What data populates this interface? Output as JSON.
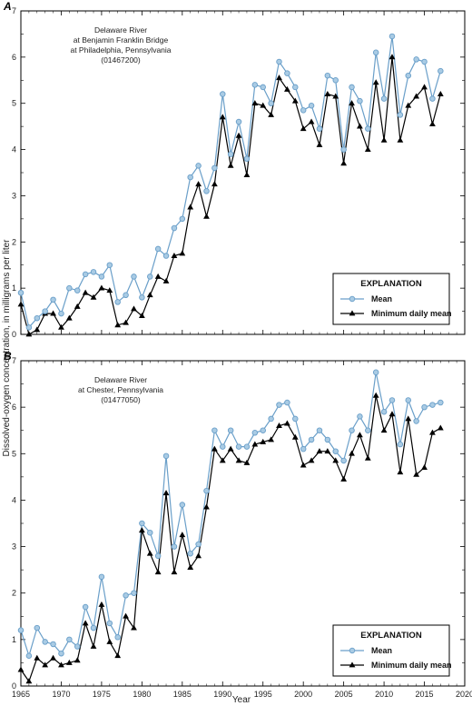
{
  "ylabel": "Dissolved-oxygen concentration, in milligrams per liter",
  "xlabel": "Year",
  "colors": {
    "mean": "#6a9fc9",
    "mean_fill": "#a9cbe4",
    "minimum": "#000000"
  },
  "legend_title": "EXPLANATION",
  "legend_mean": "Mean",
  "legend_min": "Minimum daily mean",
  "chart_data": [
    {
      "type": "line",
      "panel": "A",
      "station": [
        "Delaware River",
        "at Benjamin Franklin Bridge",
        "at Philadelphia, Pennsylvania",
        "(01467200)"
      ],
      "xlim": [
        1965,
        2020
      ],
      "ylim": [
        0,
        7
      ],
      "xticks": [
        1965,
        1970,
        1975,
        1980,
        1985,
        1990,
        1995,
        2000,
        2005,
        2010,
        2015,
        2020
      ],
      "yticks": [
        0,
        1,
        2,
        3,
        4,
        5,
        6,
        7
      ],
      "legend": "lower-right",
      "x": [
        1965,
        1966,
        1967,
        1968,
        1969,
        1970,
        1971,
        1972,
        1973,
        1974,
        1975,
        1976,
        1977,
        1978,
        1979,
        1980,
        1981,
        1982,
        1983,
        1984,
        1985,
        1986,
        1987,
        1988,
        1989,
        1990,
        1991,
        1992,
        1993,
        1994,
        1995,
        1996,
        1997,
        1998,
        1999,
        2000,
        2001,
        2002,
        2003,
        2004,
        2005,
        2006,
        2007,
        2008,
        2009,
        2010,
        2011,
        2012,
        2013,
        2014,
        2015,
        2016,
        2017
      ],
      "series": [
        {
          "name": "Mean",
          "values": [
            0.9,
            0.15,
            0.35,
            0.5,
            0.75,
            0.45,
            1.0,
            0.95,
            1.3,
            1.35,
            1.25,
            1.5,
            0.7,
            0.85,
            1.25,
            0.8,
            1.25,
            1.85,
            1.7,
            2.3,
            2.5,
            3.4,
            3.65,
            3.1,
            3.6,
            5.2,
            3.9,
            4.6,
            3.8,
            5.4,
            5.35,
            5.0,
            5.9,
            5.65,
            5.35,
            4.85,
            4.95,
            4.45,
            5.6,
            5.5,
            4.0,
            5.35,
            5.05,
            4.45,
            6.1,
            5.1,
            6.45,
            4.75,
            5.6,
            5.95,
            5.9,
            5.1,
            5.7
          ]
        },
        {
          "name": "Minimum daily mean",
          "values": [
            0.65,
            0.0,
            0.1,
            0.45,
            0.45,
            0.15,
            0.35,
            0.6,
            0.9,
            0.8,
            1.0,
            0.95,
            0.2,
            0.25,
            0.55,
            0.4,
            0.85,
            1.25,
            1.15,
            1.7,
            1.75,
            2.75,
            3.25,
            2.55,
            3.25,
            4.7,
            3.65,
            4.3,
            3.45,
            5.0,
            4.95,
            4.75,
            5.55,
            5.3,
            5.05,
            4.45,
            4.6,
            4.1,
            5.2,
            5.15,
            3.7,
            5.0,
            4.5,
            4.0,
            5.45,
            4.2,
            6.0,
            4.2,
            4.95,
            5.15,
            5.35,
            4.55,
            5.2
          ]
        }
      ]
    },
    {
      "type": "line",
      "panel": "B",
      "station": [
        "Delaware River",
        "at Chester, Pennsylvania",
        "(01477050)"
      ],
      "xlim": [
        1965,
        2020
      ],
      "ylim": [
        0,
        7
      ],
      "xticks": [
        1965,
        1970,
        1975,
        1980,
        1985,
        1990,
        1995,
        2000,
        2005,
        2010,
        2015,
        2020
      ],
      "yticks": [
        0,
        1,
        2,
        3,
        4,
        5,
        6,
        7
      ],
      "legend": "lower-right",
      "x": [
        1965,
        1966,
        1967,
        1968,
        1969,
        1970,
        1971,
        1972,
        1973,
        1974,
        1975,
        1976,
        1977,
        1978,
        1979,
        1980,
        1981,
        1982,
        1983,
        1984,
        1985,
        1986,
        1987,
        1988,
        1989,
        1990,
        1991,
        1992,
        1993,
        1994,
        1995,
        1996,
        1997,
        1998,
        1999,
        2000,
        2001,
        2002,
        2003,
        2004,
        2005,
        2006,
        2007,
        2008,
        2009,
        2010,
        2011,
        2012,
        2013,
        2014,
        2015,
        2016,
        2017
      ],
      "series": [
        {
          "name": "Mean",
          "values": [
            1.2,
            0.65,
            1.25,
            0.95,
            0.9,
            0.7,
            1.0,
            0.85,
            1.7,
            1.25,
            2.35,
            1.35,
            1.05,
            1.95,
            2.0,
            3.5,
            3.3,
            2.8,
            4.95,
            3.0,
            3.9,
            2.85,
            3.05,
            4.2,
            5.5,
            5.15,
            5.5,
            5.15,
            5.15,
            5.45,
            5.5,
            5.75,
            6.05,
            6.1,
            5.75,
            5.1,
            5.3,
            5.5,
            5.3,
            5.05,
            4.85,
            5.5,
            5.8,
            5.5,
            6.75,
            5.9,
            6.15,
            5.2,
            6.15,
            5.7,
            6.0,
            6.05,
            6.1
          ]
        },
        {
          "name": "Minimum daily mean",
          "values": [
            0.35,
            0.1,
            0.6,
            0.45,
            0.6,
            0.45,
            0.5,
            0.55,
            1.35,
            0.85,
            1.75,
            0.95,
            0.65,
            1.5,
            1.25,
            3.35,
            2.85,
            2.45,
            4.15,
            2.45,
            3.25,
            2.55,
            2.8,
            3.85,
            5.1,
            4.85,
            5.1,
            4.85,
            4.8,
            5.2,
            5.25,
            5.3,
            5.6,
            5.65,
            5.35,
            4.75,
            4.85,
            5.05,
            5.05,
            4.85,
            4.45,
            5.0,
            5.4,
            4.9,
            6.25,
            5.5,
            5.85,
            4.6,
            5.75,
            4.55,
            4.7,
            5.45,
            5.55
          ]
        }
      ]
    }
  ]
}
